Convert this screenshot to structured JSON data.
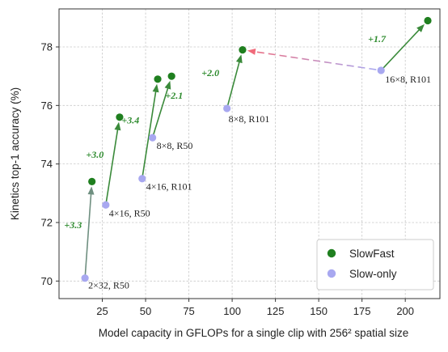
{
  "colors": {
    "slowfast": "#1f7f1f",
    "slowonly": "#a8a8f0",
    "arrow_green": "#3a8a3a",
    "arrow_gray": "#6f8f80",
    "gain_text": "#2e8b2e",
    "dashed_start": "#a8a8f0",
    "dashed_end": "#f06a7a"
  },
  "chart_data": {
    "type": "scatter",
    "xlabel": "Model capacity in GFLOPs for a single clip with 256² spatial size",
    "ylabel": "Kinetics top-1 accuracy (%)",
    "xlim": [
      0,
      220
    ],
    "ylim": [
      69.4,
      79.3
    ],
    "x_ticks": [
      25,
      50,
      75,
      100,
      125,
      150,
      175,
      200
    ],
    "y_ticks": [
      70,
      72,
      74,
      76,
      78
    ],
    "grid": true,
    "legend": {
      "position": "bottom-right",
      "entries": [
        "SlowFast",
        "Slow-only"
      ]
    },
    "series": [
      {
        "name": "Slow-only",
        "points": [
          {
            "x": 15,
            "y": 70.1,
            "label": "2×32, R50"
          },
          {
            "x": 27,
            "y": 72.6,
            "label": "4×16, R50"
          },
          {
            "x": 48,
            "y": 73.5,
            "label": "4×16, R101"
          },
          {
            "x": 54,
            "y": 74.9,
            "label": "8×8, R50"
          },
          {
            "x": 97,
            "y": 75.9,
            "label": "8×8, R101"
          },
          {
            "x": 186,
            "y": 77.2,
            "label": "16×8, R101"
          }
        ]
      },
      {
        "name": "SlowFast",
        "points": [
          {
            "x": 19,
            "y": 73.4
          },
          {
            "x": 35,
            "y": 75.6
          },
          {
            "x": 57,
            "y": 76.9
          },
          {
            "x": 65,
            "y": 77.0
          },
          {
            "x": 106,
            "y": 77.9
          },
          {
            "x": 213,
            "y": 78.9
          }
        ]
      }
    ],
    "arrows": [
      {
        "from": [
          15,
          70.1
        ],
        "to": [
          19,
          73.4
        ],
        "style": "gray",
        "gain": "+3.3"
      },
      {
        "from": [
          27,
          72.6
        ],
        "to": [
          35,
          75.6
        ],
        "style": "green",
        "gain": "+3.0"
      },
      {
        "from": [
          48,
          73.5
        ],
        "to": [
          57,
          76.9
        ],
        "style": "green",
        "gain": "+3.4"
      },
      {
        "from": [
          54,
          74.9
        ],
        "to": [
          65,
          77.0
        ],
        "style": "green",
        "gain": "+2.1"
      },
      {
        "from": [
          97,
          75.9
        ],
        "to": [
          106,
          77.9
        ],
        "style": "green",
        "gain": "+2.0"
      },
      {
        "from": [
          186,
          77.2
        ],
        "to": [
          213,
          78.9
        ],
        "style": "green",
        "gain": "+1.7"
      },
      {
        "from": [
          186,
          77.2
        ],
        "to": [
          106,
          77.9
        ],
        "style": "dashed",
        "gain": ""
      }
    ]
  }
}
